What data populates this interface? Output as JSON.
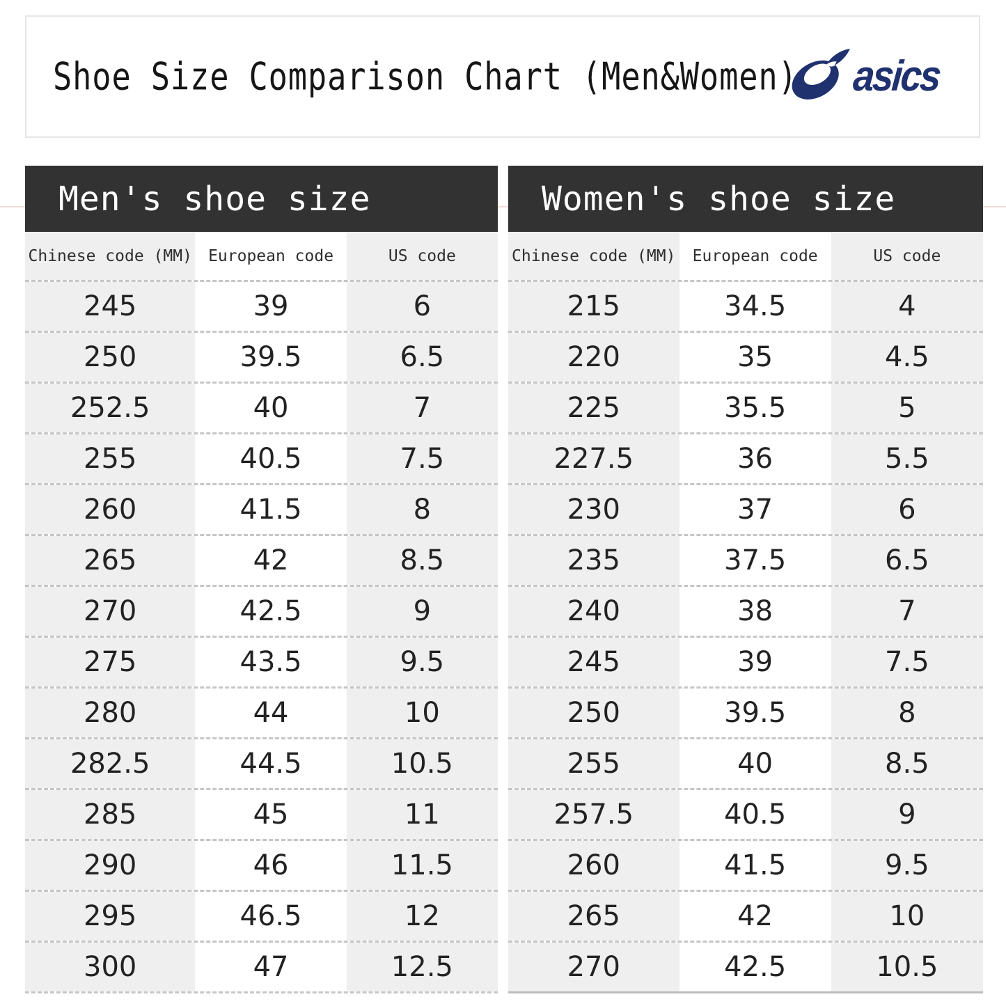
{
  "page": {
    "title": "Shoe Size Comparison Chart (Men&Women)",
    "brand_wordmark": "asics"
  },
  "colors": {
    "brand_navy": "#20316f",
    "band_background": "#323232",
    "column_stripe": "#efefef",
    "dashed_line": "#c6c6c6",
    "accent_line": "#f3dada",
    "text": "#222222"
  },
  "tables": {
    "men": {
      "title": "Men's shoe size",
      "columns": [
        "Chinese code (MM)",
        "European code",
        "US code"
      ],
      "rows": [
        [
          "245",
          "39",
          "6"
        ],
        [
          "250",
          "39.5",
          "6.5"
        ],
        [
          "252.5",
          "40",
          "7"
        ],
        [
          "255",
          "40.5",
          "7.5"
        ],
        [
          "260",
          "41.5",
          "8"
        ],
        [
          "265",
          "42",
          "8.5"
        ],
        [
          "270",
          "42.5",
          "9"
        ],
        [
          "275",
          "43.5",
          "9.5"
        ],
        [
          "280",
          "44",
          "10"
        ],
        [
          "282.5",
          "44.5",
          "10.5"
        ],
        [
          "285",
          "45",
          "11"
        ],
        [
          "290",
          "46",
          "11.5"
        ],
        [
          "295",
          "46.5",
          "12"
        ],
        [
          "300",
          "47",
          "12.5"
        ]
      ]
    },
    "women": {
      "title": "Women's shoe size",
      "columns": [
        "Chinese code (MM)",
        "European code",
        "US code"
      ],
      "rows": [
        [
          "215",
          "34.5",
          "4"
        ],
        [
          "220",
          "35",
          "4.5"
        ],
        [
          "225",
          "35.5",
          "5"
        ],
        [
          "227.5",
          "36",
          "5.5"
        ],
        [
          "230",
          "37",
          "6"
        ],
        [
          "235",
          "37.5",
          "6.5"
        ],
        [
          "240",
          "38",
          "7"
        ],
        [
          "245",
          "39",
          "7.5"
        ],
        [
          "250",
          "39.5",
          "8"
        ],
        [
          "255",
          "40",
          "8.5"
        ],
        [
          "257.5",
          "40.5",
          "9"
        ],
        [
          "260",
          "41.5",
          "9.5"
        ],
        [
          "265",
          "42",
          "10"
        ],
        [
          "270",
          "42.5",
          "10.5"
        ]
      ]
    }
  }
}
